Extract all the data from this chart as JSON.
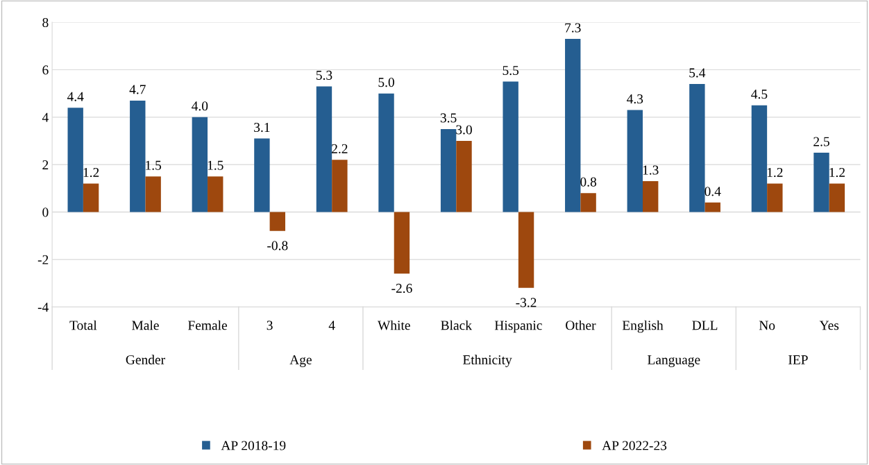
{
  "chart_data": {
    "type": "bar",
    "categories": [
      "Total",
      "Male",
      "Female",
      "3",
      "4",
      "White",
      "Black",
      "Hispanic",
      "Other",
      "English",
      "DLL",
      "No",
      "Yes"
    ],
    "series": [
      {
        "name": "AP 2018-19",
        "color": "#255e91",
        "values": [
          4.4,
          4.7,
          4.0,
          3.1,
          5.3,
          5.0,
          3.5,
          5.5,
          7.3,
          4.3,
          5.4,
          4.5,
          2.5
        ],
        "value_labels": [
          "4.4",
          "4.7",
          "4.0",
          "3.1",
          "5.3",
          "5.0",
          "3.5",
          "5.5",
          "7.3",
          "4.3",
          "5.4",
          "4.5",
          "2.5"
        ]
      },
      {
        "name": "AP 2022-23",
        "color": "#9e480e",
        "values": [
          1.2,
          1.5,
          1.5,
          -0.8,
          2.2,
          -2.6,
          3.0,
          -3.2,
          0.8,
          1.3,
          0.4,
          1.2,
          1.2
        ],
        "value_labels": [
          "1.2",
          "1.5",
          "1.5",
          "-0.8",
          "2.2",
          "-2.6",
          "3.0",
          "-3.2",
          "0.8",
          "1.3",
          "0.4",
          "1.2",
          "1.2"
        ]
      }
    ],
    "annotations": [
      "Gender",
      "Age",
      "Ethnicity",
      "Language",
      "IEP"
    ],
    "ylim": [
      -4,
      8
    ],
    "yticks": [
      -4,
      -2,
      0,
      2,
      4,
      6,
      8
    ],
    "grid": "y",
    "legend": "bottom"
  }
}
